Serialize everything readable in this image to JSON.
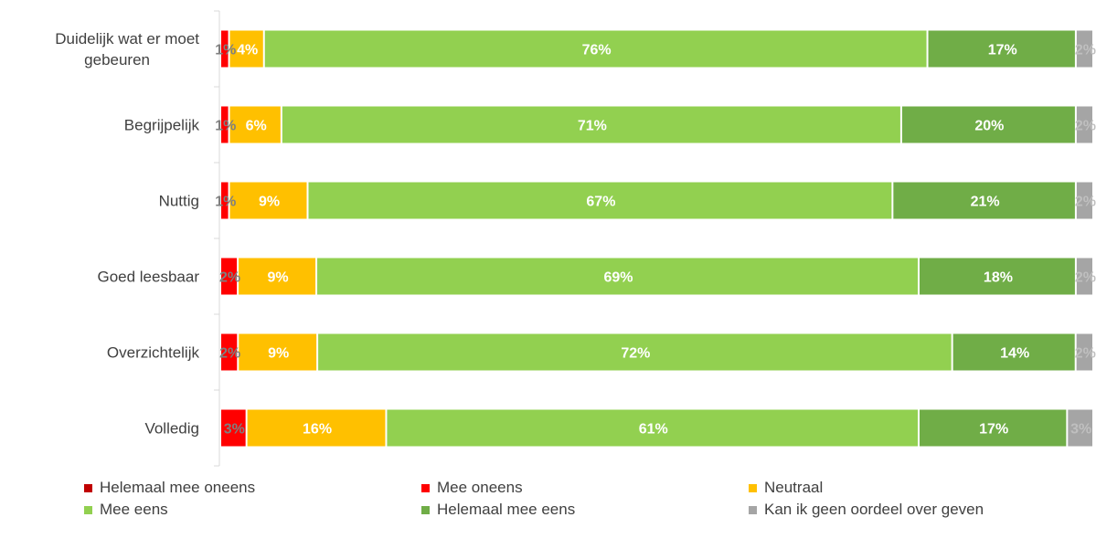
{
  "chart_data": {
    "type": "bar",
    "orientation": "horizontal",
    "stacked": "percent",
    "categories": [
      "Duidelijk wat er moet gebeuren",
      "Begrijpelijk",
      "Nuttig",
      "Goed leesbaar",
      "Overzichtelijk",
      "Volledig"
    ],
    "category_lines": [
      [
        "Duidelijk wat er moet",
        "gebeuren"
      ],
      [
        "Begrijpelijk"
      ],
      [
        "Nuttig"
      ],
      [
        "Goed leesbaar"
      ],
      [
        "Overzichtelijk"
      ],
      [
        "Volledig"
      ]
    ],
    "series": [
      {
        "name": "Helemaal mee oneens",
        "color": "#C00000",
        "label_color": "#7F7F7F",
        "values": [
          0,
          0,
          0,
          0,
          0,
          0
        ],
        "labels": [
          "",
          "",
          "",
          "",
          "",
          ""
        ]
      },
      {
        "name": "Mee oneens",
        "color": "#FF0000",
        "label_color": "#7F7F7F",
        "values": [
          1,
          1,
          1,
          2,
          2,
          3
        ],
        "labels": [
          "1%",
          "1%",
          "1%",
          "2%",
          "2%",
          "3%"
        ]
      },
      {
        "name": "Neutraal",
        "color": "#FFC000",
        "label_color": "#FFFFFF",
        "values": [
          4,
          6,
          9,
          9,
          9,
          16
        ],
        "labels": [
          "4%",
          "6%",
          "9%",
          "9%",
          "9%",
          "16%"
        ]
      },
      {
        "name": "Mee eens",
        "color": "#92D050",
        "label_color": "#FFFFFF",
        "values": [
          76,
          71,
          67,
          69,
          72,
          61
        ],
        "labels": [
          "76%",
          "71%",
          "67%",
          "69%",
          "72%",
          "61%"
        ]
      },
      {
        "name": "Helemaal mee eens",
        "color": "#70AD47",
        "label_color": "#FFFFFF",
        "values": [
          17,
          20,
          21,
          18,
          14,
          17
        ],
        "labels": [
          "17%",
          "20%",
          "21%",
          "18%",
          "14%",
          "17%"
        ]
      },
      {
        "name": "Kan ik geen oordeel over geven",
        "color": "#A5A5A5",
        "label_color": "#BFBFBF",
        "values": [
          2,
          2,
          2,
          2,
          2,
          3
        ],
        "labels": [
          "2%",
          "2%",
          "2%",
          "2%",
          "2%",
          "3%"
        ]
      }
    ],
    "xlim": [
      0,
      100
    ],
    "grid": false,
    "legend_position": "bottom",
    "title": "",
    "xlabel": "",
    "ylabel": ""
  }
}
